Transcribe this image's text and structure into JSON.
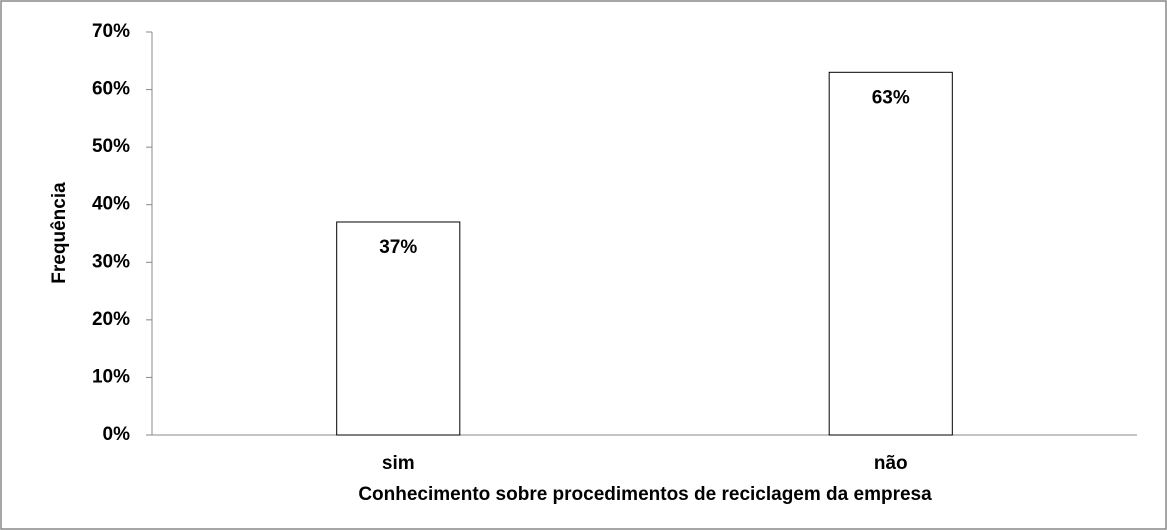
{
  "chart_data": {
    "type": "bar",
    "categories": [
      "sim",
      "não"
    ],
    "values": [
      37,
      63
    ],
    "value_labels": [
      "37%",
      "63%"
    ],
    "color": "#ffffff",
    "xlabel": "Conhecimento sobre procedimentos de reciclagem da empresa",
    "ylabel": "Frequência",
    "ylim": [
      0,
      70
    ],
    "yticks": [
      {
        "value": 0,
        "label": "0%"
      },
      {
        "value": 10,
        "label": "10%"
      },
      {
        "value": 20,
        "label": "20%"
      },
      {
        "value": 30,
        "label": "30%"
      },
      {
        "value": 40,
        "label": "40%"
      },
      {
        "value": 50,
        "label": "50%"
      },
      {
        "value": 60,
        "label": "60%"
      },
      {
        "value": 70,
        "label": "70%"
      }
    ],
    "grid": false
  }
}
